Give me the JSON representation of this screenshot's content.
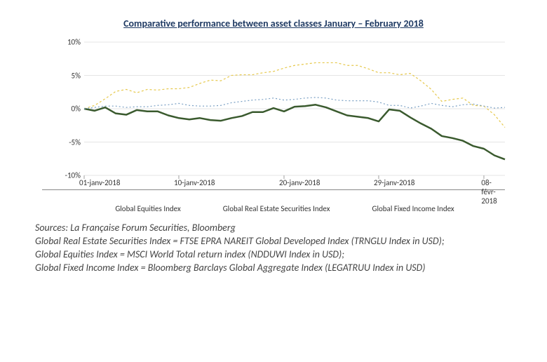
{
  "title_text": "Comparative performance between asset classes January – February 2018",
  "title_color": "#1f3a63",
  "title_fontsize": 14,
  "chart": {
    "type": "line",
    "background_color": "#ffffff",
    "text_color": "#333333",
    "grid_color": "#cccccc",
    "tick_fontsize": 11,
    "ylim": [
      -10,
      10
    ],
    "ytick_step": 5,
    "ytick_labels": [
      "10%",
      "5%",
      "0%",
      "-5%",
      "-10%"
    ],
    "ytick_values": [
      10,
      5,
      0,
      -5,
      -10
    ],
    "x_count": 41,
    "xtick_positions": [
      0,
      9,
      19,
      28,
      38
    ],
    "xtick_labels": [
      "01-janv-2018",
      "10-janv-2018",
      "20-janv-2018",
      "29-janv-2018",
      "08-févr-2018"
    ],
    "series": [
      {
        "name": "Global Equities Index",
        "color": "#e6c84b",
        "line_width": 1.2,
        "dash": "3,3",
        "values": [
          0,
          0.5,
          1.5,
          2.6,
          2.9,
          2.4,
          2.9,
          2.8,
          3.0,
          3.0,
          3.2,
          3.8,
          4.3,
          4.2,
          5.0,
          5.1,
          5.1,
          5.4,
          5.6,
          6.1,
          6.5,
          6.7,
          6.9,
          6.9,
          6.9,
          6.5,
          6.5,
          6.0,
          5.4,
          5.4,
          5.1,
          5.3,
          4.2,
          2.9,
          1.1,
          1.4,
          1.6,
          0.5,
          0.4,
          -0.9,
          -2.8
        ]
      },
      {
        "name": "Global Real Estate Securities Index",
        "color": "#3a5a2e",
        "line_width": 2.5,
        "dash": "",
        "values": [
          0,
          -0.3,
          0.2,
          -0.7,
          -0.9,
          -0.2,
          -0.4,
          -0.4,
          -1.0,
          -1.4,
          -1.6,
          -1.4,
          -1.7,
          -1.8,
          -1.4,
          -1.1,
          -0.5,
          -0.5,
          0.1,
          -0.4,
          0.3,
          0.4,
          0.6,
          0.2,
          -0.4,
          -1.0,
          -1.2,
          -1.4,
          -1.9,
          -0.1,
          -0.3,
          -1.3,
          -2.2,
          -3.0,
          -4.1,
          -4.4,
          -4.8,
          -5.6,
          -6.0,
          -7.0,
          -7.6
        ]
      },
      {
        "name": "Global Fixed Income Index",
        "color": "#7aa0c4",
        "line_width": 1.2,
        "dash": "2,3",
        "values": [
          0,
          0.2,
          0.4,
          0.4,
          0.2,
          0.3,
          0.3,
          0.5,
          0.6,
          0.8,
          0.5,
          0.4,
          0.4,
          0.5,
          0.9,
          1.1,
          1.3,
          1.4,
          1.6,
          1.3,
          1.4,
          1.6,
          1.7,
          1.6,
          1.3,
          1.2,
          1.2,
          1.2,
          1.0,
          0.5,
          0.5,
          0.1,
          0.4,
          0.8,
          0.5,
          0.3,
          0.6,
          0.7,
          0.4,
          0.1,
          0.2
        ]
      }
    ]
  },
  "legend_labels": {
    "eq": "Global Equities Index",
    "re": "Global Real Estate Securities Index",
    "fi": "Global Fixed Income Index"
  },
  "sources": {
    "l1": "Sources: La Française Forum Securities, Bloomberg",
    "l2": "Global Real Estate Securities Index = FTSE EPRA NAREIT Global Developed Index (TRNGLU Index in USD);",
    "l3": "Global Equities Index = MSCI World Total return index (NDDUWI Index in USD);",
    "l4": "Global Fixed Income Index = Bloomberg Barclays Global Aggregate Index (LEGATRUU Index in USD)"
  }
}
